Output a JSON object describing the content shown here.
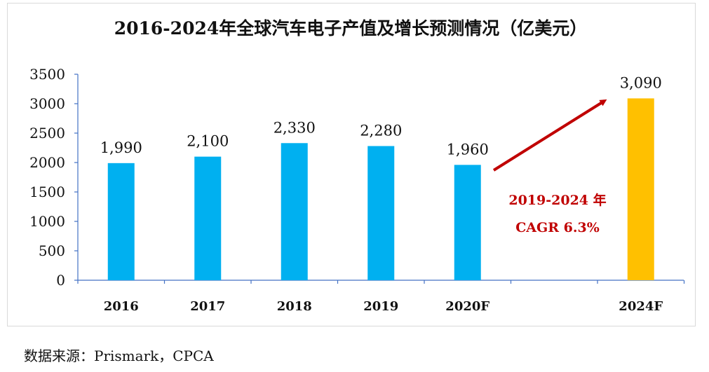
{
  "chart_data": {
    "type": "bar",
    "title": "2016-2024年全球汽车电子产值及增长预测情况（亿美元）",
    "categories": [
      "2016",
      "2017",
      "2018",
      "2019",
      "2020F",
      "2024F"
    ],
    "values": [
      1990,
      2100,
      2330,
      2280,
      1960,
      3090
    ],
    "value_labels": [
      "1,990",
      "2,100",
      "2,330",
      "2,280",
      "1,960",
      "3,090"
    ],
    "y_ticks": [
      "0",
      "500",
      "1000",
      "1500",
      "2000",
      "2500",
      "3000",
      "3500"
    ],
    "ylim": [
      0,
      3500
    ],
    "xlabel": "",
    "ylabel": "",
    "grid": false,
    "annotation": {
      "line1": "2019-2024 年",
      "line2": "CAGR 6.3%"
    },
    "colors": {
      "bar": "#00b0f0",
      "forecast_bar": "#ffc000",
      "annotation": "#c00000",
      "axis": "#4472c4"
    }
  },
  "source": "数据来源：Prismark，CPCA"
}
